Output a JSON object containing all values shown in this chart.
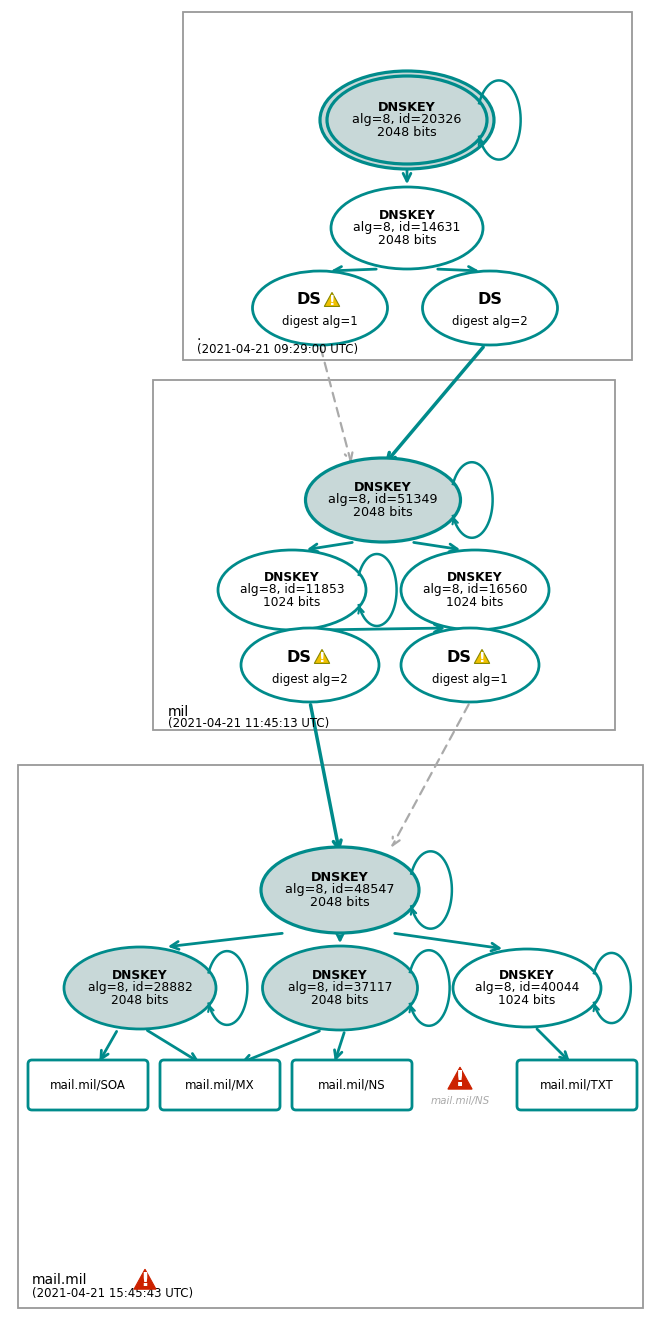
{
  "teal": "#008B8B",
  "teal_ksk": "#c8d8d8",
  "white": "#ffffff",
  "arrow_c": "#008B8B",
  "dash_c": "#aaaaaa",
  "box_edge": "#888888",
  "section1_dot": ".",
  "section1_time": "(2021-04-21 09:29:00 UTC)",
  "section2_label": "mil",
  "section2_time": "(2021-04-21 11:45:13 UTC)",
  "section3_label": "mail.mil",
  "section3_time": "(2021-04-21 15:45:43 UTC)",
  "ksk1_text": "DNSKEY\nalg=8, id=20326\n2048 bits",
  "zsk1_text": "DNSKEY\nalg=8, id=14631\n2048 bits",
  "ds1a_text": "DS",
  "ds1a_sub": "digest alg=1",
  "ds1b_text": "DS",
  "ds1b_sub": "digest alg=2",
  "ksk2_text": "DNSKEY\nalg=8, id=51349\n2048 bits",
  "zsk2a_text": "DNSKEY\nalg=8, id=11853\n1024 bits",
  "zsk2b_text": "DNSKEY\nalg=8, id=16560\n1024 bits",
  "ds2a_text": "DS",
  "ds2a_sub": "digest alg=2",
  "ds2b_text": "DS",
  "ds2b_sub": "digest alg=1",
  "ksk3_text": "DNSKEY\nalg=8, id=48547\n2048 bits",
  "zsk3a_text": "DNSKEY\nalg=8, id=28882\n2048 bits",
  "zsk3b_text": "DNSKEY\nalg=8, id=37117\n2048 bits",
  "zsk3c_text": "DNSKEY\nalg=8, id=40044\n1024 bits",
  "rr_soa": "mail.mil/SOA",
  "rr_mx": "mail.mil/MX",
  "rr_ns": "mail.mil/NS",
  "rr_ns_err": "mail.mil/NS",
  "rr_txt": "mail.mil/TXT"
}
